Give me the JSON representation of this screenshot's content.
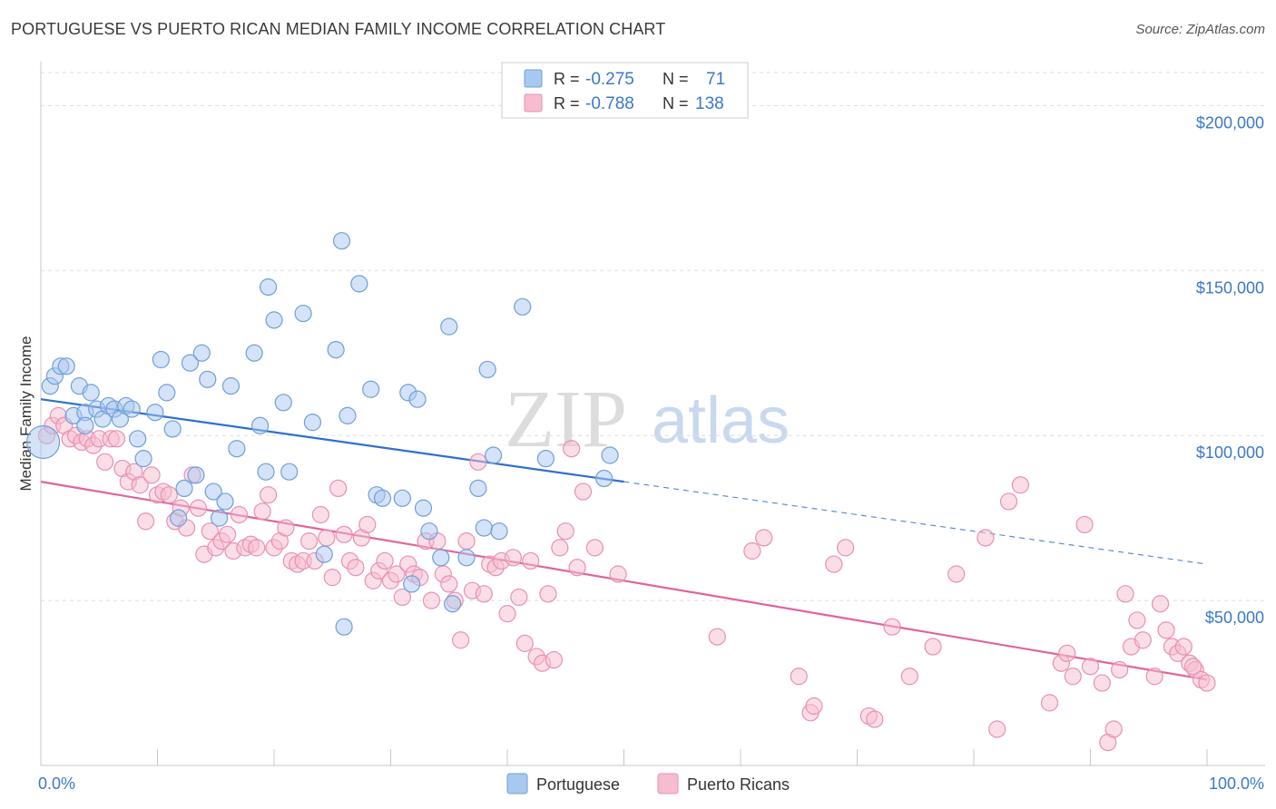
{
  "title": "PORTUGUESE VS PUERTO RICAN MEDIAN FAMILY INCOME CORRELATION CHART",
  "source": "Source: ZipAtlas.com",
  "watermark": {
    "zip": "ZIP",
    "atlas": "atlas"
  },
  "colors": {
    "portuguese_fill": "#a9c8f0",
    "portuguese_stroke": "#6f9fd8",
    "portuguese_line": "#2f6fce",
    "puerto_fill": "#f6bdd0",
    "puerto_stroke": "#ea8fb0",
    "puerto_line": "#e0649a",
    "tick_text": "#3a78c9",
    "grid": "#dddddd"
  },
  "legend": {
    "rows": [
      {
        "r_label": "R =",
        "r_value": "-0.275",
        "n_label": "N =",
        "n_value": "71"
      },
      {
        "r_label": "R =",
        "r_value": "-0.788",
        "n_label": "N =",
        "n_value": "138"
      }
    ]
  },
  "chart_data": {
    "type": "scatter",
    "title": "PORTUGUESE VS PUERTO RICAN MEDIAN FAMILY INCOME CORRELATION CHART",
    "xlabel": "",
    "ylabel": "Median Family Income",
    "xlim": [
      0,
      100
    ],
    "ylim": [
      0,
      210000
    ],
    "x_tick_labels": [
      "0.0%",
      "100.0%"
    ],
    "y_ticks": [
      50000,
      100000,
      150000,
      200000
    ],
    "y_tick_labels": [
      "$50,000",
      "$100,000",
      "$150,000",
      "$200,000"
    ],
    "grid": true,
    "legend_position": "top-center",
    "series": [
      {
        "name": "Portuguese",
        "trend": {
          "x0": 0,
          "y0": 111000,
          "x1": 50,
          "y1": 86000,
          "dashed_to_x": 100,
          "dashed_to_y": 61000
        },
        "points": [
          [
            0.2,
            98000
          ],
          [
            0.8,
            115000
          ],
          [
            1.2,
            118000
          ],
          [
            1.7,
            121000
          ],
          [
            2.2,
            121000
          ],
          [
            2.8,
            106000
          ],
          [
            3.3,
            115000
          ],
          [
            3.8,
            107000
          ],
          [
            4.3,
            113000
          ],
          [
            4.8,
            108000
          ],
          [
            5.3,
            105000
          ],
          [
            5.8,
            109000
          ],
          [
            6.3,
            108000
          ],
          [
            6.8,
            105000
          ],
          [
            7.3,
            109000
          ],
          [
            7.8,
            108000
          ],
          [
            8.3,
            99000
          ],
          [
            8.8,
            93000
          ],
          [
            9.8,
            107000
          ],
          [
            10.3,
            123000
          ],
          [
            10.8,
            113000
          ],
          [
            11.3,
            102000
          ],
          [
            11.8,
            75000
          ],
          [
            12.3,
            84000
          ],
          [
            12.8,
            122000
          ],
          [
            13.3,
            88000
          ],
          [
            13.8,
            125000
          ],
          [
            14.3,
            117000
          ],
          [
            14.8,
            83000
          ],
          [
            15.3,
            75000
          ],
          [
            15.8,
            80000
          ],
          [
            16.3,
            115000
          ],
          [
            16.8,
            96000
          ],
          [
            18.3,
            125000
          ],
          [
            18.8,
            103000
          ],
          [
            19.3,
            89000
          ],
          [
            19.5,
            145000
          ],
          [
            20.0,
            135000
          ],
          [
            20.8,
            110000
          ],
          [
            21.3,
            89000
          ],
          [
            22.5,
            137000
          ],
          [
            23.3,
            104000
          ],
          [
            24.3,
            64000
          ],
          [
            25.3,
            126000
          ],
          [
            25.8,
            159000
          ],
          [
            26.3,
            106000
          ],
          [
            27.3,
            146000
          ],
          [
            28.3,
            114000
          ],
          [
            28.8,
            82000
          ],
          [
            29.3,
            81000
          ],
          [
            31.0,
            81000
          ],
          [
            31.5,
            113000
          ],
          [
            31.8,
            55000
          ],
          [
            32.3,
            111000
          ],
          [
            32.8,
            78000
          ],
          [
            33.3,
            71000
          ],
          [
            34.3,
            63000
          ],
          [
            35.0,
            133000
          ],
          [
            35.3,
            49000
          ],
          [
            36.5,
            63000
          ],
          [
            37.5,
            84000
          ],
          [
            38.0,
            72000
          ],
          [
            38.3,
            120000
          ],
          [
            38.8,
            94000
          ],
          [
            39.3,
            71000
          ],
          [
            41.3,
            139000
          ],
          [
            43.3,
            93000
          ],
          [
            48.3,
            87000
          ],
          [
            48.8,
            94000
          ],
          [
            3.8,
            103000
          ],
          [
            26.0,
            42000
          ]
        ]
      },
      {
        "name": "Puerto Ricans",
        "trend": {
          "x0": 0,
          "y0": 86000,
          "x1": 100,
          "y1": 26000
        },
        "points": [
          [
            0.5,
            100000
          ],
          [
            1.0,
            103000
          ],
          [
            1.5,
            106000
          ],
          [
            2.0,
            103000
          ],
          [
            2.5,
            99000
          ],
          [
            3.0,
            100000
          ],
          [
            3.5,
            98000
          ],
          [
            4.0,
            99000
          ],
          [
            4.5,
            97000
          ],
          [
            5.0,
            99000
          ],
          [
            5.5,
            92000
          ],
          [
            6.0,
            99000
          ],
          [
            6.5,
            99000
          ],
          [
            7.0,
            90000
          ],
          [
            7.5,
            86000
          ],
          [
            8.0,
            89000
          ],
          [
            8.5,
            85000
          ],
          [
            9.0,
            74000
          ],
          [
            9.5,
            88000
          ],
          [
            10.0,
            82000
          ],
          [
            10.5,
            83000
          ],
          [
            11.0,
            82000
          ],
          [
            11.5,
            74000
          ],
          [
            12.0,
            78000
          ],
          [
            12.5,
            72000
          ],
          [
            13.0,
            88000
          ],
          [
            13.5,
            78000
          ],
          [
            14.0,
            64000
          ],
          [
            14.5,
            71000
          ],
          [
            15.0,
            66000
          ],
          [
            15.5,
            68000
          ],
          [
            16.0,
            70000
          ],
          [
            16.5,
            65000
          ],
          [
            17.0,
            76000
          ],
          [
            17.5,
            66000
          ],
          [
            18.0,
            67000
          ],
          [
            18.5,
            66000
          ],
          [
            19.0,
            77000
          ],
          [
            19.5,
            82000
          ],
          [
            20.0,
            66000
          ],
          [
            20.5,
            68000
          ],
          [
            21.0,
            72000
          ],
          [
            21.5,
            62000
          ],
          [
            22.0,
            61000
          ],
          [
            22.5,
            62000
          ],
          [
            23.0,
            68000
          ],
          [
            23.5,
            62000
          ],
          [
            24.0,
            76000
          ],
          [
            24.5,
            69000
          ],
          [
            25.0,
            57000
          ],
          [
            25.5,
            84000
          ],
          [
            26.0,
            70000
          ],
          [
            26.5,
            62000
          ],
          [
            27.0,
            60000
          ],
          [
            27.5,
            69000
          ],
          [
            28.0,
            73000
          ],
          [
            28.5,
            56000
          ],
          [
            29.0,
            59000
          ],
          [
            29.5,
            62000
          ],
          [
            30.0,
            56000
          ],
          [
            30.5,
            58000
          ],
          [
            31.0,
            51000
          ],
          [
            31.5,
            61000
          ],
          [
            32.0,
            58000
          ],
          [
            32.5,
            57000
          ],
          [
            33.0,
            68000
          ],
          [
            33.5,
            50000
          ],
          [
            34.0,
            68000
          ],
          [
            34.5,
            58000
          ],
          [
            35.0,
            55000
          ],
          [
            35.5,
            50000
          ],
          [
            36.0,
            38000
          ],
          [
            36.5,
            68000
          ],
          [
            37.0,
            53000
          ],
          [
            37.5,
            92000
          ],
          [
            38.0,
            52000
          ],
          [
            38.5,
            61000
          ],
          [
            39.0,
            60000
          ],
          [
            39.5,
            62000
          ],
          [
            40.0,
            46000
          ],
          [
            40.5,
            63000
          ],
          [
            41.0,
            51000
          ],
          [
            41.5,
            37000
          ],
          [
            42.0,
            62000
          ],
          [
            42.5,
            33000
          ],
          [
            43.0,
            31000
          ],
          [
            43.5,
            52000
          ],
          [
            44.0,
            32000
          ],
          [
            44.5,
            66000
          ],
          [
            45.0,
            71000
          ],
          [
            45.5,
            96000
          ],
          [
            46.0,
            60000
          ],
          [
            46.5,
            83000
          ],
          [
            47.5,
            66000
          ],
          [
            49.5,
            58000
          ],
          [
            58.0,
            39000
          ],
          [
            61.0,
            65000
          ],
          [
            62.0,
            69000
          ],
          [
            65.0,
            27000
          ],
          [
            66.0,
            16000
          ],
          [
            66.3,
            18000
          ],
          [
            68.0,
            61000
          ],
          [
            69.0,
            66000
          ],
          [
            71.0,
            15000
          ],
          [
            71.5,
            14000
          ],
          [
            73.0,
            42000
          ],
          [
            74.5,
            27000
          ],
          [
            76.5,
            36000
          ],
          [
            78.5,
            58000
          ],
          [
            81.0,
            69000
          ],
          [
            82.0,
            11000
          ],
          [
            83.0,
            80000
          ],
          [
            84.0,
            85000
          ],
          [
            86.5,
            19000
          ],
          [
            87.5,
            31000
          ],
          [
            88.0,
            34000
          ],
          [
            88.5,
            27000
          ],
          [
            89.5,
            73000
          ],
          [
            90.0,
            30000
          ],
          [
            91.0,
            25000
          ],
          [
            91.5,
            7000
          ],
          [
            92.0,
            11000
          ],
          [
            92.5,
            29000
          ],
          [
            93.0,
            52000
          ],
          [
            93.5,
            36000
          ],
          [
            94.0,
            44000
          ],
          [
            94.5,
            38000
          ],
          [
            95.5,
            27000
          ],
          [
            96.0,
            49000
          ],
          [
            96.5,
            41000
          ],
          [
            97.0,
            36000
          ],
          [
            97.5,
            34000
          ],
          [
            98.0,
            36000
          ],
          [
            98.5,
            31000
          ],
          [
            99.0,
            29000
          ],
          [
            99.5,
            26000
          ],
          [
            100.0,
            25000
          ],
          [
            98.8,
            30000
          ]
        ]
      }
    ]
  }
}
